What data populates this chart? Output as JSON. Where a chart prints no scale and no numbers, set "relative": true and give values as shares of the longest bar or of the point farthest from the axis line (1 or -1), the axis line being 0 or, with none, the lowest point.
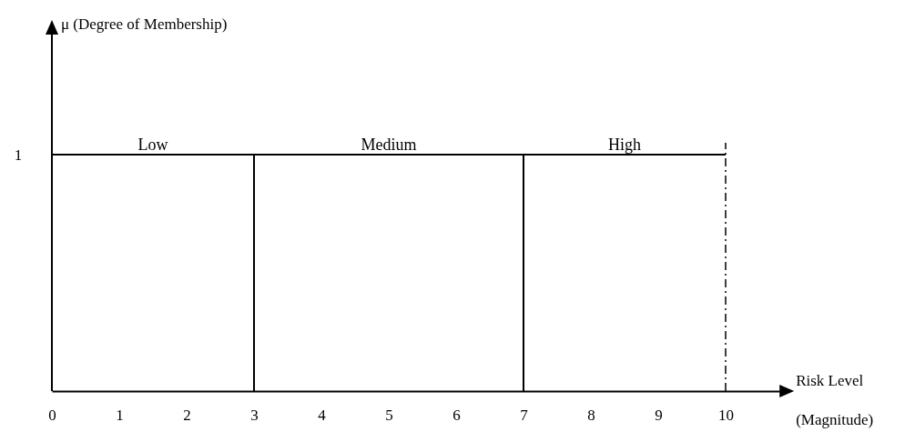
{
  "chart_data": {
    "type": "line",
    "xlabel": "Risk Level",
    "annotations": [
      "1",
      "(Magnitude)",
      "μ (Degree of Membership)"
    ],
    "relative": true,
    "xlim": [
      0,
      10.8
    ],
    "xticks": [
      0,
      1,
      2,
      3,
      4,
      5,
      6,
      7,
      8,
      9,
      10
    ],
    "series": [
      {
        "name": "Low",
        "color": "#000000",
        "x": [
          0,
          3,
          3
        ],
        "values": [
          1,
          1,
          0
        ]
      },
      {
        "name": "Medium",
        "color": "#000000",
        "x": [
          3,
          7,
          7
        ],
        "values": [
          1,
          1,
          0
        ]
      },
      {
        "name": "High",
        "color": "#000000",
        "x": [
          7,
          10
        ],
        "values": [
          1,
          1
        ]
      }
    ],
    "ref_lines": [
      {
        "axis": "x",
        "value": 10,
        "line_style": "dashed",
        "color": "#000000"
      }
    ],
    "legend": false,
    "marker": "none",
    "line_style": "solid"
  }
}
